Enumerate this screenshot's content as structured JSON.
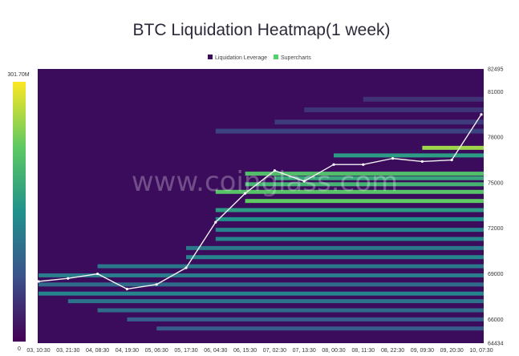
{
  "chart_data": {
    "type": "heatmap",
    "title": "BTC Liquidation Heatmap(1 week)",
    "legend": [
      {
        "label": "Liquidation Leverage",
        "color": "#3b0b5c"
      },
      {
        "label": "Supercharts",
        "color": "#4ed36a"
      }
    ],
    "legend_position": "top-center",
    "watermark": "www.coinglass.com",
    "color_scale": {
      "max_label": "301.70M",
      "min_label": "0",
      "colors": [
        "#440154",
        "#3b528b",
        "#21918c",
        "#5ec962",
        "#fde725"
      ]
    },
    "x_ticks": [
      "03, 10:30",
      "03, 21:30",
      "04, 08:30",
      "04, 19:30",
      "05, 06:30",
      "05, 17:30",
      "06, 04:30",
      "06, 15:30",
      "07, 02:30",
      "07, 13:30",
      "08, 00:30",
      "08, 11:30",
      "08, 22:30",
      "09, 09:30",
      "09, 20:30",
      "10, 07:30"
    ],
    "y_ticks": [
      82495,
      81000,
      78000,
      75000,
      72000,
      69000,
      66000,
      64434
    ],
    "ylim": [
      64434,
      82495
    ],
    "price_series": [
      {
        "x": "03, 10:30",
        "y": 68500
      },
      {
        "x": "03, 21:30",
        "y": 68700
      },
      {
        "x": "04, 08:30",
        "y": 69000
      },
      {
        "x": "04, 19:30",
        "y": 68000
      },
      {
        "x": "05, 06:30",
        "y": 68300
      },
      {
        "x": "05, 17:30",
        "y": 69400
      },
      {
        "x": "06, 04:30",
        "y": 72400
      },
      {
        "x": "06, 15:30",
        "y": 74300
      },
      {
        "x": "07, 02:30",
        "y": 75800
      },
      {
        "x": "07, 13:30",
        "y": 75100
      },
      {
        "x": "08, 00:30",
        "y": 76200
      },
      {
        "x": "08, 11:30",
        "y": 76200
      },
      {
        "x": "08, 22:30",
        "y": 76600
      },
      {
        "x": "09, 09:30",
        "y": 76400
      },
      {
        "x": "09, 20:30",
        "y": 76500
      },
      {
        "x": "10, 07:30",
        "y": 79500
      }
    ],
    "bands": [
      {
        "price": 77300,
        "start": "09, 09:30",
        "intensity": 0.85
      },
      {
        "price": 76800,
        "start": "08, 00:30",
        "intensity": 0.55
      },
      {
        "price": 75600,
        "start": "06, 15:30",
        "intensity": 0.7
      },
      {
        "price": 75300,
        "start": "07, 02:30",
        "intensity": 0.6
      },
      {
        "price": 74900,
        "start": "06, 15:30",
        "intensity": 0.65
      },
      {
        "price": 74400,
        "start": "06, 04:30",
        "intensity": 0.72
      },
      {
        "price": 73800,
        "start": "06, 15:30",
        "intensity": 0.75
      },
      {
        "price": 73200,
        "start": "06, 04:30",
        "intensity": 0.55
      },
      {
        "price": 72600,
        "start": "06, 04:30",
        "intensity": 0.5
      },
      {
        "price": 71900,
        "start": "06, 04:30",
        "intensity": 0.45
      },
      {
        "price": 71300,
        "start": "06, 04:30",
        "intensity": 0.45
      },
      {
        "price": 70700,
        "start": "05, 17:30",
        "intensity": 0.4
      },
      {
        "price": 70100,
        "start": "05, 17:30",
        "intensity": 0.45
      },
      {
        "price": 69500,
        "start": "04, 08:30",
        "intensity": 0.4
      },
      {
        "price": 68900,
        "start": "03, 10:30",
        "intensity": 0.42
      },
      {
        "price": 68300,
        "start": "03, 10:30",
        "intensity": 0.35
      },
      {
        "price": 67700,
        "start": "03, 10:30",
        "intensity": 0.45
      },
      {
        "price": 67200,
        "start": "03, 21:30",
        "intensity": 0.38
      },
      {
        "price": 66600,
        "start": "04, 08:30",
        "intensity": 0.35
      },
      {
        "price": 66000,
        "start": "04, 19:30",
        "intensity": 0.3
      },
      {
        "price": 65400,
        "start": "05, 06:30",
        "intensity": 0.28
      }
    ],
    "upper_bands": [
      {
        "price": 78400,
        "start": "06, 04:30",
        "intensity": 0.2
      },
      {
        "price": 79000,
        "start": "07, 02:30",
        "intensity": 0.18
      },
      {
        "price": 79800,
        "start": "07, 13:30",
        "intensity": 0.16
      },
      {
        "price": 80500,
        "start": "08, 11:30",
        "intensity": 0.15
      }
    ]
  }
}
